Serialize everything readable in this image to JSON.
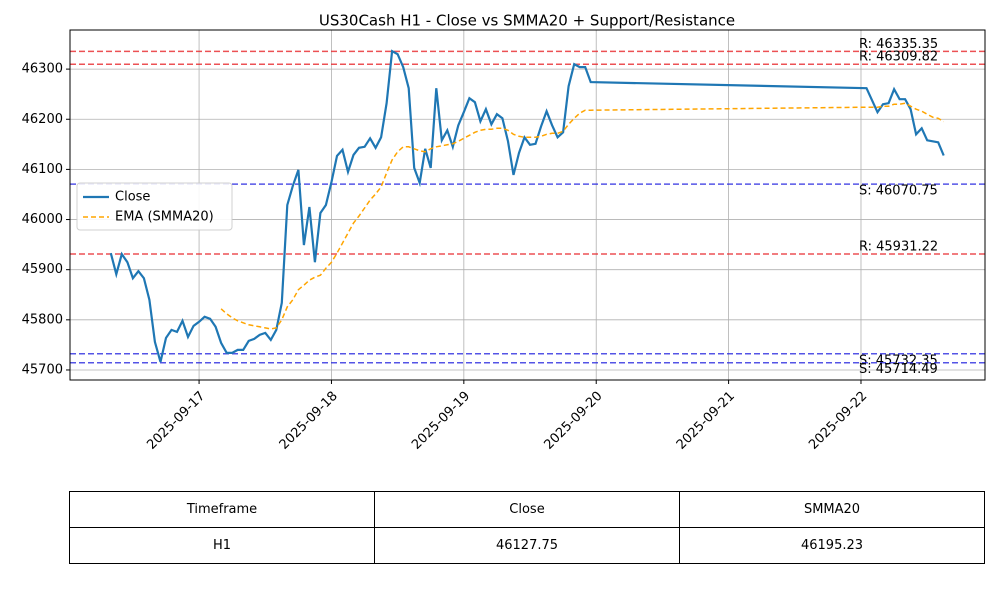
{
  "chart_data": {
    "type": "line",
    "title": "US30Cash H1 - Close vs SMMA20 + Support/Resistance",
    "x": [
      "2025-09-16 08:00",
      "2025-09-16 09:00",
      "2025-09-16 10:00",
      "2025-09-16 11:00",
      "2025-09-16 12:00",
      "2025-09-16 13:00",
      "2025-09-16 14:00",
      "2025-09-16 15:00",
      "2025-09-16 16:00",
      "2025-09-16 17:00",
      "2025-09-16 18:00",
      "2025-09-16 19:00",
      "2025-09-16 20:00",
      "2025-09-16 21:00",
      "2025-09-16 22:00",
      "2025-09-16 23:00",
      "2025-09-17 00:00",
      "2025-09-17 01:00",
      "2025-09-17 02:00",
      "2025-09-17 03:00",
      "2025-09-17 04:00",
      "2025-09-17 05:00",
      "2025-09-17 06:00",
      "2025-09-17 07:00",
      "2025-09-17 08:00",
      "2025-09-17 09:00",
      "2025-09-17 10:00",
      "2025-09-17 11:00",
      "2025-09-17 12:00",
      "2025-09-17 13:00",
      "2025-09-17 14:00",
      "2025-09-17 15:00",
      "2025-09-17 16:00",
      "2025-09-17 17:00",
      "2025-09-17 18:00",
      "2025-09-17 19:00",
      "2025-09-17 20:00",
      "2025-09-17 21:00",
      "2025-09-17 22:00",
      "2025-09-17 23:00",
      "2025-09-18 00:00",
      "2025-09-18 01:00",
      "2025-09-18 02:00",
      "2025-09-18 03:00",
      "2025-09-18 04:00",
      "2025-09-18 05:00",
      "2025-09-18 06:00",
      "2025-09-18 07:00",
      "2025-09-18 08:00",
      "2025-09-18 09:00",
      "2025-09-18 10:00",
      "2025-09-18 11:00",
      "2025-09-18 12:00",
      "2025-09-18 13:00",
      "2025-09-18 14:00",
      "2025-09-18 15:00",
      "2025-09-18 16:00",
      "2025-09-18 17:00",
      "2025-09-18 18:00",
      "2025-09-18 19:00",
      "2025-09-18 20:00",
      "2025-09-18 21:00",
      "2025-09-18 22:00",
      "2025-09-18 23:00",
      "2025-09-19 00:00",
      "2025-09-19 01:00",
      "2025-09-19 02:00",
      "2025-09-19 03:00",
      "2025-09-19 04:00",
      "2025-09-19 05:00",
      "2025-09-19 06:00",
      "2025-09-19 07:00",
      "2025-09-19 08:00",
      "2025-09-19 09:00",
      "2025-09-19 10:00",
      "2025-09-19 11:00",
      "2025-09-19 12:00",
      "2025-09-19 13:00",
      "2025-09-19 14:00",
      "2025-09-19 15:00",
      "2025-09-19 16:00",
      "2025-09-19 17:00",
      "2025-09-19 18:00",
      "2025-09-19 19:00",
      "2025-09-19 20:00",
      "2025-09-19 21:00",
      "2025-09-19 22:00",
      "2025-09-19 23:00",
      "2025-09-22 01:00",
      "2025-09-22 02:00",
      "2025-09-22 03:00",
      "2025-09-22 04:00",
      "2025-09-22 05:00",
      "2025-09-22 06:00",
      "2025-09-22 07:00",
      "2025-09-22 08:00",
      "2025-09-22 09:00",
      "2025-09-22 10:00",
      "2025-09-22 11:00",
      "2025-09-22 12:00",
      "2025-09-22 13:00",
      "2025-09-22 14:00",
      "2025-09-22 15:00"
    ],
    "series": [
      {
        "name": "Close",
        "color": "#1f77b4",
        "dashed": false,
        "values": [
          45933,
          45891,
          45931,
          45915,
          45883,
          45897,
          45883,
          45840,
          45756,
          45716,
          45764,
          45780,
          45776,
          45798,
          45766,
          45788,
          45796,
          45806,
          45802,
          45786,
          45754,
          45734,
          45734,
          45740,
          45740,
          45758,
          45762,
          45770,
          45774,
          45760,
          45780,
          45834,
          46029,
          46067,
          46099,
          45949,
          46025,
          45915,
          46013,
          46029,
          46075,
          46127,
          46139,
          46095,
          46129,
          46143,
          46145,
          46162,
          46143,
          46164,
          46232,
          46336,
          46330,
          46304,
          46262,
          46103,
          46073,
          46141,
          46103,
          46262,
          46158,
          46178,
          46145,
          46188,
          46214,
          46242,
          46234,
          46196,
          46220,
          46190,
          46210,
          46202,
          46156,
          46089,
          46133,
          46164,
          46149,
          46151,
          46186,
          46216,
          46188,
          46164,
          46174,
          46266,
          46310,
          46304,
          46304,
          46274,
          46262,
          46238,
          46214,
          46230,
          46232,
          46260,
          46240,
          46240,
          46220,
          46170,
          46182,
          46158,
          46156,
          46154,
          46127.75
        ]
      },
      {
        "name": "EMA (SMMA20)",
        "color": "#ffa500",
        "dashed": true,
        "values": [
          null,
          null,
          null,
          null,
          null,
          null,
          null,
          null,
          null,
          null,
          null,
          null,
          null,
          null,
          null,
          null,
          null,
          null,
          null,
          null,
          45822,
          45812,
          45804,
          45798,
          45794,
          45790,
          45788,
          45786,
          45784,
          45782,
          45784,
          45800,
          45826,
          45840,
          45860,
          45869,
          45879,
          45885,
          45889,
          45903,
          45915,
          45933,
          45953,
          45973,
          45993,
          46007,
          46023,
          46039,
          46051,
          46065,
          46093,
          46119,
          46135,
          46145,
          46145,
          46141,
          46137,
          46135,
          46141,
          46145,
          46147,
          46149,
          46151,
          46156,
          46162,
          46168,
          46174,
          46178,
          46180,
          46180,
          46182,
          46182,
          46178,
          46170,
          46166,
          46164,
          46164,
          46164,
          46166,
          46170,
          46172,
          46172,
          46176,
          46190,
          46202,
          46212,
          46218,
          46218,
          46224,
          46224,
          46224,
          46226,
          46226,
          46230,
          46230,
          46232,
          46226,
          46220,
          46216,
          46210,
          46204,
          46202,
          46195.23
        ]
      }
    ],
    "resistance_color": "#e8262a",
    "resistance_levels": [
      {
        "value": 46335.35,
        "label": "R: 46335.35"
      },
      {
        "value": 46309.82,
        "label": "R: 46309.82"
      },
      {
        "value": 45931.22,
        "label": "R: 45931.22"
      }
    ],
    "support_color": "#2a2ae0",
    "support_levels": [
      {
        "value": 46070.75,
        "label": "S: 46070.75"
      },
      {
        "value": 45732.35,
        "label": "S: 45732.35"
      },
      {
        "value": 45714.49,
        "label": "S: 45714.49"
      }
    ],
    "xlim": [
      "2025-09-16 00:36",
      "2025-09-22 22:29"
    ],
    "xticks": [
      "2025-09-17",
      "2025-09-18",
      "2025-09-19",
      "2025-09-20",
      "2025-09-21",
      "2025-09-22"
    ],
    "ylim": [
      45680,
      46378
    ],
    "yticks": [
      45700,
      45800,
      45900,
      46000,
      46100,
      46200,
      46300
    ],
    "grid": true,
    "legend": "upper left"
  },
  "table": {
    "columns": [
      "Timeframe",
      "Close",
      "SMMA20"
    ],
    "rows": [
      [
        "H1",
        "46127.75",
        "46195.23"
      ]
    ]
  }
}
